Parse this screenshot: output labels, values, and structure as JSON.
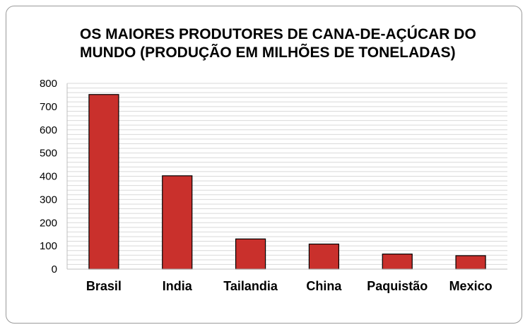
{
  "chart_data": {
    "type": "bar",
    "title": "OS MAIORES PRODUTORES DE CANA-DE-AÇÚCAR DO MUNDO (PRODUÇÃO EM MILHÕES DE TONELADAS)",
    "categories": [
      "Brasil",
      "India",
      "Tailandia",
      "China",
      "Paquistão",
      "Mexico"
    ],
    "values": [
      752,
      402,
      130,
      108,
      65,
      58
    ],
    "ylim": [
      0,
      800
    ],
    "yticks": [
      "0",
      "100",
      "200",
      "300",
      "400",
      "500",
      "600",
      "700",
      "800"
    ],
    "grid": true,
    "bar_color": "#c9302c",
    "bar_outline": "#000000"
  }
}
